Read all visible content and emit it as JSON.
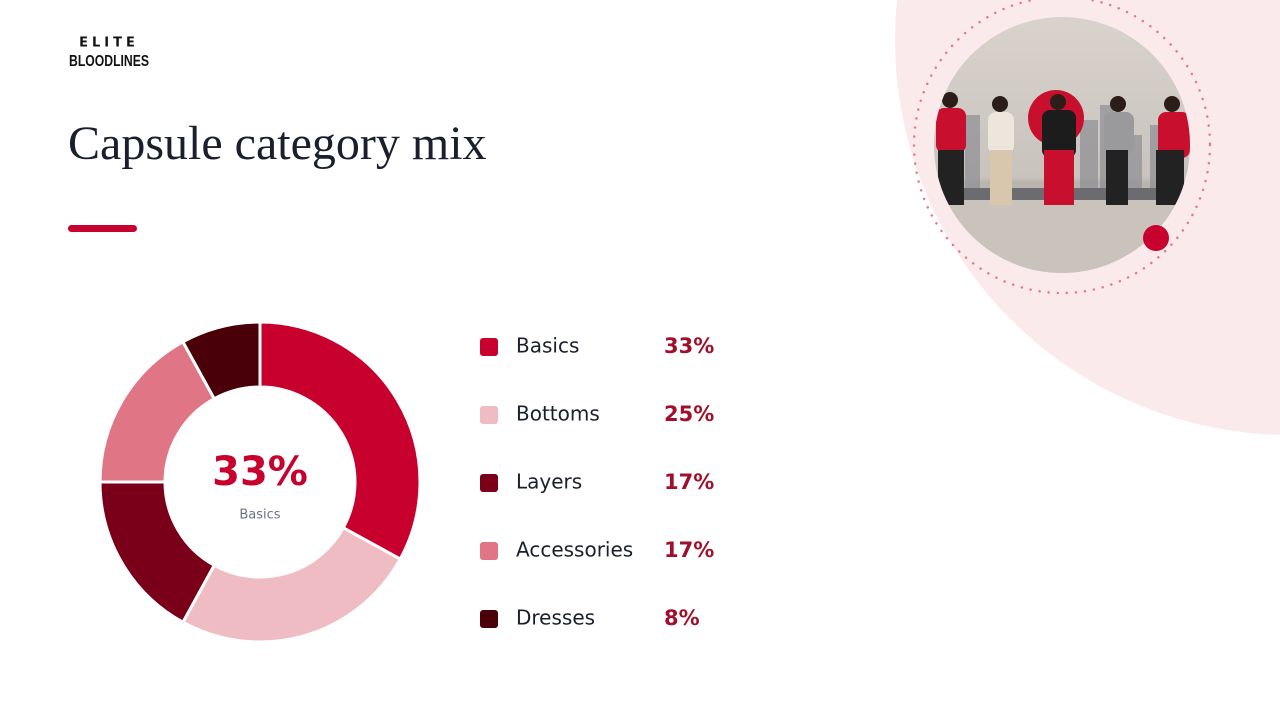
{
  "logo": {
    "top": "ELITE",
    "name": "BLOODLINES"
  },
  "chart_data": {
    "type": "donut",
    "title": "Capsule category mix",
    "categories": [
      "Basics",
      "Bottoms",
      "Layers",
      "Accessories",
      "Dresses"
    ],
    "values": [
      33,
      25,
      17,
      17,
      8
    ],
    "value_labels": [
      "33%",
      "25%",
      "17%",
      "17%",
      "8%"
    ],
    "colors": [
      "#c8002d",
      "#efbcc4",
      "#7a0019",
      "#e07585",
      "#4a0008"
    ],
    "legend": "right"
  }
}
